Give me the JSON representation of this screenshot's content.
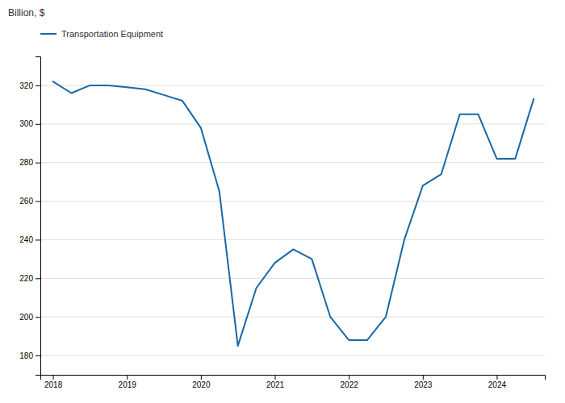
{
  "chart_data": {
    "type": "line",
    "ylabel": "Billion, $",
    "x": [
      2018.0,
      2018.25,
      2018.5,
      2018.75,
      2019.0,
      2019.25,
      2019.5,
      2019.75,
      2020.0,
      2020.25,
      2020.5,
      2020.75,
      2021.0,
      2021.25,
      2021.5,
      2021.75,
      2022.0,
      2022.25,
      2022.5,
      2022.75,
      2023.0,
      2023.25,
      2023.5,
      2023.75,
      2024.0,
      2024.25,
      2024.5
    ],
    "series": [
      {
        "name": "Transportation Equipment",
        "color": "#1868a7",
        "values": [
          322,
          316,
          320,
          320,
          319,
          318,
          315,
          312,
          298,
          265,
          185,
          215,
          228,
          235,
          230,
          200,
          188,
          188,
          200,
          240,
          268,
          274,
          305,
          305,
          282,
          282,
          313
        ]
      }
    ],
    "xlim": [
      2017.83,
      2024.65
    ],
    "xticks": [
      2018,
      2019,
      2020,
      2021,
      2022,
      2023,
      2024
    ],
    "ylim": [
      170,
      335
    ],
    "yticks": [
      180,
      200,
      220,
      240,
      260,
      280,
      300,
      320
    ],
    "grid": true,
    "legend": "top-left"
  }
}
